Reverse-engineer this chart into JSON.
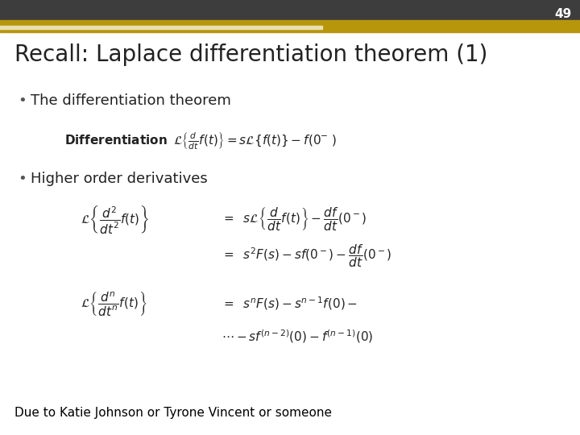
{
  "slide_number": "49",
  "title": "Recall: Laplace differentiation theorem (1)",
  "bullet1": "The differentiation theorem",
  "bullet2": "Higher order derivatives",
  "footer": "Due to Katie Johnson or Tyrone Vincent or someone",
  "bg_color": "#ffffff",
  "title_color": "#222222",
  "header_dark_color": "#3d3d3d",
  "header_gold_color": "#b8960c",
  "slide_num_color": "#ffffff",
  "footer_color": "#000000"
}
